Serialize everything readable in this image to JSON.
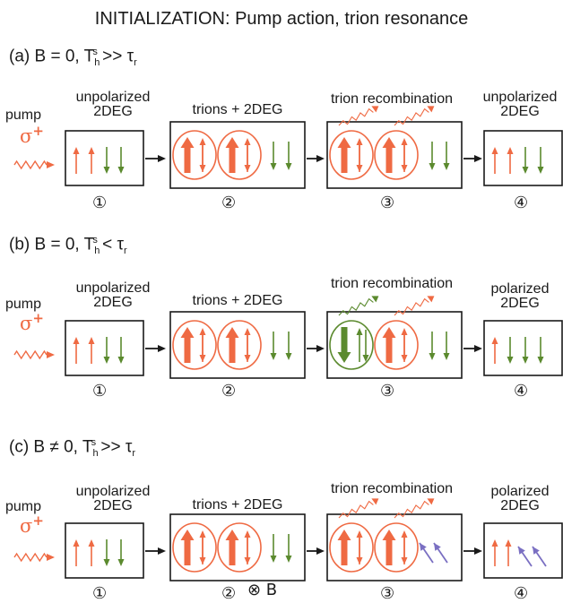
{
  "title": "INITIALIZATION: Pump action, trion resonance",
  "colors": {
    "orange": "#ef6a43",
    "green": "#5b8a2e",
    "purple": "#7a6fc2",
    "black": "#1a1a1a"
  },
  "rows": [
    {
      "title_a": "(a) B = 0, T",
      "title_sub": "h",
      "title_sup": "s",
      "title_b": " >> τ",
      "title_sub2": "r",
      "pump_label": "pump",
      "sigma": "σ",
      "sigma_sup": "+",
      "stage1_label_1": "unpolarized",
      "stage1_label_2": "2DEG",
      "stage2_label": "trions + 2DEG",
      "stage3_label": "trion recombination",
      "stage4_label_1": "unpolarized",
      "stage4_label_2": "2DEG",
      "steps": [
        "①",
        "②",
        "③",
        "④"
      ]
    },
    {
      "title_a": "(b) B = 0, T",
      "title_sub": "h",
      "title_sup": "s",
      "title_b": " < τ",
      "title_sub2": "r",
      "pump_label": "pump",
      "sigma": "σ",
      "sigma_sup": "+",
      "stage1_label_1": "unpolarized",
      "stage1_label_2": "2DEG",
      "stage2_label": "trions + 2DEG",
      "stage3_label": "trion recombination",
      "stage4_label_1": "polarized",
      "stage4_label_2": "2DEG",
      "steps": [
        "①",
        "②",
        "③",
        "④"
      ]
    },
    {
      "title_a": "(c) B ≠ 0, T",
      "title_sub": "h",
      "title_sup": "s",
      "title_b": " >> τ",
      "title_sub2": "r",
      "pump_label": "pump",
      "sigma": "σ",
      "sigma_sup": "+",
      "stage1_label_1": "unpolarized",
      "stage1_label_2": "2DEG",
      "stage2_label": "trions + 2DEG",
      "stage3_label": "trion recombination",
      "stage4_label_1": "polarized",
      "stage4_label_2": "2DEG",
      "steps": [
        "①",
        "②",
        "③",
        "④"
      ],
      "b_field": "⊗ B"
    }
  ]
}
